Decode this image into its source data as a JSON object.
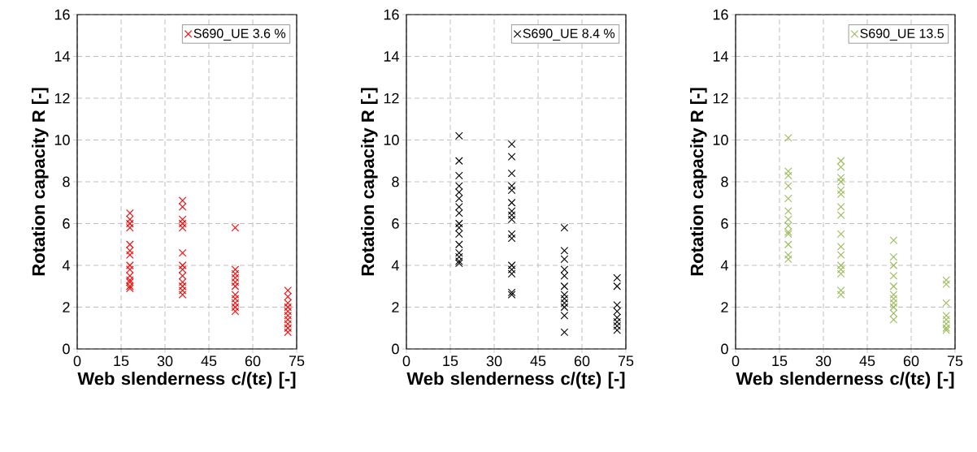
{
  "chart_data": [
    {
      "type": "scatter",
      "xlabel": "Web slenderness c/(tε) [-]",
      "ylabel": "Rotation capacity R [-]",
      "xlim": [
        0,
        75
      ],
      "ylim": [
        0,
        16
      ],
      "xticks": [
        0,
        15,
        30,
        45,
        60,
        75
      ],
      "yticks": [
        0,
        2,
        4,
        6,
        8,
        10,
        12,
        14,
        16
      ],
      "grid": true,
      "legend": "top right",
      "marker": "cross",
      "series": [
        {
          "name": "S690_UE 3.6 %",
          "color": "#ff0000",
          "x": [
            18,
            18,
            18,
            18,
            18,
            18,
            18,
            18,
            18,
            18,
            18,
            18,
            18,
            18,
            36,
            36,
            36,
            36,
            36,
            36,
            36,
            36,
            36,
            36,
            36,
            36,
            36,
            54,
            54,
            54,
            54,
            54,
            54,
            54,
            54,
            54,
            54,
            54,
            72,
            72,
            72,
            72,
            72,
            72,
            72,
            72,
            72,
            72
          ],
          "values": [
            6.5,
            6.2,
            6.0,
            5.8,
            5.0,
            4.7,
            4.5,
            4.0,
            3.8,
            3.5,
            3.3,
            3.2,
            3.0,
            2.9,
            7.1,
            6.8,
            6.2,
            6.0,
            5.8,
            4.6,
            4.0,
            3.8,
            3.5,
            3.2,
            3.0,
            2.8,
            2.6,
            5.8,
            3.8,
            3.6,
            3.4,
            3.2,
            3.0,
            2.6,
            2.4,
            2.2,
            2.0,
            1.8,
            2.8,
            2.5,
            2.2,
            2.0,
            1.8,
            1.6,
            1.4,
            1.2,
            1.0,
            0.8
          ]
        }
      ]
    },
    {
      "type": "scatter",
      "xlabel": "Web slenderness c/(tε) [-]",
      "ylabel": "Rotation capacity R [-]",
      "xlim": [
        0,
        75
      ],
      "ylim": [
        0,
        16
      ],
      "xticks": [
        0,
        15,
        30,
        45,
        60,
        75
      ],
      "yticks": [
        0,
        2,
        4,
        6,
        8,
        10,
        12,
        14,
        16
      ],
      "grid": true,
      "legend": "top right",
      "marker": "cross",
      "series": [
        {
          "name": "S690_UE 8.4 %",
          "color": "#000000",
          "x": [
            18,
            18,
            18,
            18,
            18,
            18,
            18,
            18,
            18,
            18,
            18,
            18,
            18,
            18,
            18,
            18,
            36,
            36,
            36,
            36,
            36,
            36,
            36,
            36,
            36,
            36,
            36,
            36,
            36,
            36,
            36,
            36,
            54,
            54,
            54,
            54,
            54,
            54,
            54,
            54,
            54,
            54,
            54,
            54,
            72,
            72,
            72,
            72,
            72,
            72,
            72,
            72
          ],
          "values": [
            10.2,
            9.0,
            8.3,
            7.8,
            7.5,
            7.2,
            6.8,
            6.5,
            6.0,
            5.8,
            5.5,
            5.0,
            4.6,
            4.4,
            4.2,
            4.1,
            9.8,
            9.2,
            8.4,
            7.8,
            7.6,
            7.0,
            6.6,
            6.4,
            6.2,
            5.5,
            5.3,
            4.0,
            3.8,
            3.6,
            2.7,
            2.6,
            5.8,
            4.7,
            4.3,
            3.8,
            3.5,
            3.0,
            2.6,
            2.4,
            2.2,
            2.0,
            1.6,
            0.8,
            3.4,
            3.0,
            2.1,
            1.8,
            1.5,
            1.3,
            1.1,
            0.9
          ]
        }
      ]
    },
    {
      "type": "scatter",
      "xlabel": "Web slenderness c/(tε) [-]",
      "ylabel": "Rotation capacity R [-]",
      "xlim": [
        0,
        75
      ],
      "ylim": [
        0,
        16
      ],
      "xticks": [
        0,
        15,
        30,
        45,
        60,
        75
      ],
      "yticks": [
        0,
        2,
        4,
        6,
        8,
        10,
        12,
        14,
        16
      ],
      "grid": true,
      "legend": "top right",
      "marker": "cross",
      "series": [
        {
          "name": "S690_UE 13.5",
          "color": "#9bbb59",
          "x": [
            18,
            18,
            18,
            18,
            18,
            18,
            18,
            18,
            18,
            18,
            18,
            18,
            18,
            36,
            36,
            36,
            36,
            36,
            36,
            36,
            36,
            36,
            36,
            36,
            36,
            36,
            36,
            36,
            36,
            54,
            54,
            54,
            54,
            54,
            54,
            54,
            54,
            54,
            54,
            54,
            72,
            72,
            72,
            72,
            72,
            72,
            72,
            72
          ],
          "values": [
            10.1,
            8.5,
            8.3,
            7.8,
            7.2,
            6.6,
            6.2,
            5.9,
            5.6,
            5.5,
            5.0,
            4.5,
            4.3,
            9.0,
            8.7,
            8.2,
            8.0,
            7.6,
            7.4,
            6.8,
            6.4,
            5.5,
            4.9,
            4.5,
            4.0,
            3.8,
            3.6,
            2.8,
            2.6,
            5.2,
            4.4,
            4.0,
            3.5,
            3.0,
            2.6,
            2.4,
            2.2,
            2.0,
            1.7,
            1.4,
            3.3,
            3.1,
            2.2,
            1.6,
            1.4,
            1.2,
            1.0,
            0.9
          ]
        }
      ]
    }
  ]
}
